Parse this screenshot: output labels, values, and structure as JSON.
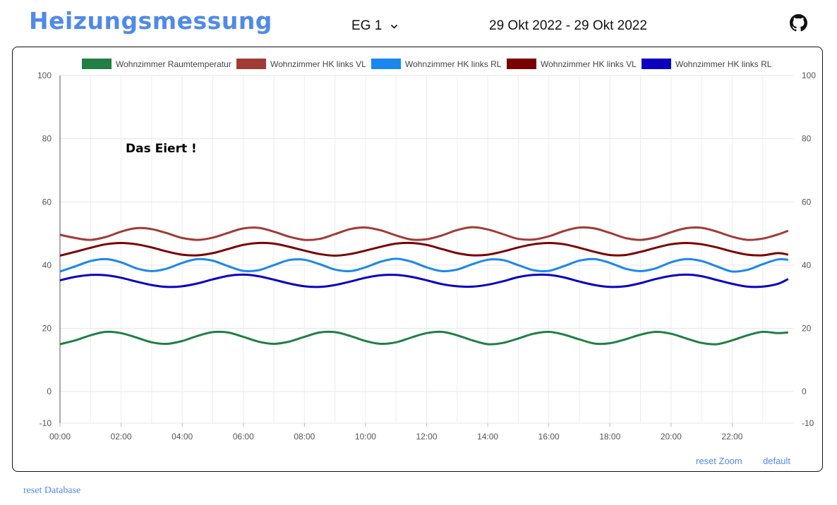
{
  "header": {
    "title": "Heizungsmessung",
    "selector_value": "EG 1",
    "date_range": "29 Okt 2022 - 29 Okt 2022",
    "github_icon": "github-icon"
  },
  "links": {
    "reset_zoom": "reset Zoom",
    "default": "default",
    "reset_database": "reset Database"
  },
  "chart_data": {
    "type": "line",
    "annotation": "Das Eiert !",
    "ylim": [
      -10,
      100
    ],
    "yticks": [
      -10,
      0,
      20,
      40,
      60,
      80,
      100
    ],
    "xlim": [
      "00:00",
      "23:50"
    ],
    "xticks": [
      "00:00",
      "02:00",
      "04:00",
      "06:00",
      "08:00",
      "10:00",
      "12:00",
      "14:00",
      "16:00",
      "18:00",
      "20:00",
      "22:00"
    ],
    "x": [
      "00:00",
      "00:30",
      "01:00",
      "01:30",
      "02:00",
      "02:30",
      "03:00",
      "03:30",
      "04:00",
      "04:30",
      "05:00",
      "05:30",
      "06:00",
      "06:30",
      "07:00",
      "07:30",
      "08:00",
      "08:30",
      "09:00",
      "09:30",
      "10:00",
      "10:30",
      "11:00",
      "11:30",
      "12:00",
      "12:30",
      "13:00",
      "13:30",
      "14:00",
      "14:30",
      "15:00",
      "15:30",
      "16:00",
      "16:30",
      "17:00",
      "17:30",
      "18:00",
      "18:30",
      "19:00",
      "19:30",
      "20:00",
      "20:30",
      "21:00",
      "21:30",
      "22:00",
      "22:30",
      "23:00",
      "23:30",
      "23:50"
    ],
    "grid": true,
    "legend": "top",
    "series": [
      {
        "name": "Wohnzimmer Raumtemperatur",
        "color": "#1f7f45",
        "values": [
          15.0,
          16.2,
          17.8,
          18.9,
          18.5,
          17.1,
          15.6,
          15.1,
          16.0,
          17.6,
          18.8,
          18.7,
          17.3,
          15.8,
          15.1,
          15.8,
          17.3,
          18.7,
          18.8,
          17.6,
          16.0,
          15.1,
          15.6,
          17.1,
          18.5,
          18.9,
          17.8,
          16.2,
          15.0,
          15.4,
          16.8,
          18.3,
          18.9,
          18.0,
          16.5,
          15.2,
          15.3,
          16.5,
          18.0,
          18.9,
          18.3,
          16.8,
          15.4,
          15.0,
          16.2,
          17.8,
          18.9,
          18.5,
          18.7
        ]
      },
      {
        "name": "Wohnzimmer HK links VL",
        "color": "#a23a36",
        "values": [
          49.6,
          48.6,
          48.0,
          48.9,
          50.6,
          51.7,
          51.4,
          50.1,
          48.6,
          48.0,
          48.7,
          50.2,
          51.6,
          51.8,
          50.6,
          49.0,
          48.0,
          48.3,
          49.8,
          51.4,
          51.9,
          51.0,
          49.4,
          48.1,
          48.2,
          49.4,
          51.1,
          52.0,
          51.3,
          49.8,
          48.3,
          48.1,
          49.1,
          50.8,
          51.9,
          51.6,
          50.2,
          48.6,
          48.0,
          48.8,
          50.4,
          51.7,
          51.8,
          50.6,
          49.0,
          48.0,
          48.4,
          49.7,
          50.9
        ]
      },
      {
        "name": "Wohnzimmer HK links RL",
        "color": "#1a86f0",
        "values": [
          38.0,
          39.6,
          41.3,
          41.9,
          40.9,
          39.0,
          38.1,
          38.9,
          40.7,
          41.9,
          41.4,
          39.7,
          38.2,
          38.4,
          40.0,
          41.6,
          41.7,
          40.3,
          38.6,
          38.1,
          39.3,
          41.1,
          42.0,
          41.1,
          39.3,
          38.1,
          38.6,
          40.3,
          41.7,
          41.6,
          40.0,
          38.4,
          38.2,
          39.7,
          41.4,
          41.9,
          40.7,
          38.9,
          38.1,
          39.0,
          40.9,
          41.9,
          41.3,
          39.6,
          38.0,
          38.5,
          40.3,
          41.8,
          41.7
        ]
      },
      {
        "name": "Wohnzimmer HK links VL",
        "color": "#7a0000",
        "values": [
          43.0,
          44.2,
          45.5,
          46.6,
          47.0,
          46.6,
          45.6,
          44.3,
          43.3,
          43.1,
          43.8,
          45.1,
          46.4,
          47.0,
          46.8,
          45.8,
          44.6,
          43.5,
          43.0,
          43.5,
          44.6,
          45.8,
          46.8,
          47.0,
          46.4,
          45.1,
          43.8,
          43.1,
          43.3,
          44.3,
          45.6,
          46.6,
          47.0,
          46.6,
          45.5,
          44.2,
          43.2,
          43.2,
          44.2,
          45.5,
          46.6,
          47.0,
          46.6,
          45.6,
          44.3,
          43.3,
          43.1,
          43.8,
          43.3
        ]
      },
      {
        "name": "Wohnzimmer HK links RL",
        "color": "#0a00c0",
        "values": [
          35.2,
          36.3,
          36.9,
          36.8,
          36.0,
          34.8,
          33.7,
          33.1,
          33.3,
          34.2,
          35.5,
          36.6,
          37.0,
          36.5,
          35.4,
          34.2,
          33.3,
          33.1,
          33.7,
          34.8,
          36.0,
          36.8,
          36.9,
          36.3,
          35.2,
          34.0,
          33.3,
          33.2,
          33.8,
          34.9,
          36.2,
          36.9,
          36.9,
          36.1,
          34.8,
          33.7,
          33.1,
          33.3,
          34.3,
          35.6,
          36.6,
          37.0,
          36.5,
          35.3,
          34.1,
          33.2,
          33.2,
          34.1,
          35.6
        ]
      }
    ]
  }
}
